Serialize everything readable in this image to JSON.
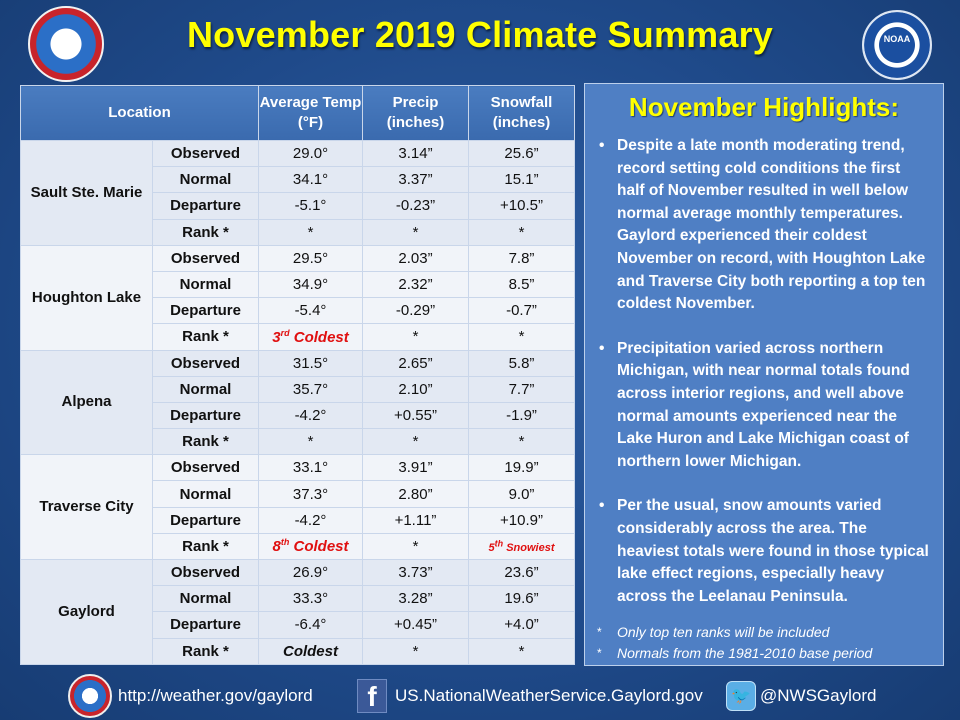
{
  "title": "November 2019 Climate Summary",
  "logos": {
    "left": "nws-icon",
    "right": "noaa-icon",
    "noaa_text": "NOAA"
  },
  "table": {
    "headers": [
      "Location",
      "Average Temp (°F)",
      "Precip (inches)",
      "Snowfall (inches)"
    ],
    "locations": [
      {
        "name": "Sault Ste. Marie",
        "rows": [
          {
            "label": "Observed",
            "temp": "29.0°",
            "precip": "3.14”",
            "snow": "25.6”"
          },
          {
            "label": "Normal",
            "temp": "34.1°",
            "precip": "3.37”",
            "snow": "15.1”"
          },
          {
            "label": "Departure",
            "temp": "-5.1°",
            "precip": "-0.23”",
            "snow": "+10.5”"
          },
          {
            "label": "Rank *",
            "temp": "*",
            "precip": "*",
            "snow": "*"
          }
        ]
      },
      {
        "name": "Houghton Lake",
        "rows": [
          {
            "label": "Observed",
            "temp": "29.5°",
            "precip": "2.03”",
            "snow": "7.8”"
          },
          {
            "label": "Normal",
            "temp": "34.9°",
            "precip": "2.32”",
            "snow": "8.5”"
          },
          {
            "label": "Departure",
            "temp": "-5.4°",
            "precip": "-0.29”",
            "snow": "-0.7”"
          },
          {
            "label": "Rank *",
            "temp_ord": "3",
            "temp_sup": "rd",
            "temp_rest": " Coldest",
            "precip": "*",
            "snow": "*"
          }
        ]
      },
      {
        "name": "Alpena",
        "rows": [
          {
            "label": "Observed",
            "temp": "31.5°",
            "precip": "2.65”",
            "snow": "5.8”"
          },
          {
            "label": "Normal",
            "temp": "35.7°",
            "precip": "2.10”",
            "snow": "7.7”"
          },
          {
            "label": "Departure",
            "temp": "-4.2°",
            "precip": "+0.55”",
            "snow": "-1.9”"
          },
          {
            "label": "Rank *",
            "temp": "*",
            "precip": "*",
            "snow": "*"
          }
        ]
      },
      {
        "name": "Traverse City",
        "rows": [
          {
            "label": "Observed",
            "temp": "33.1°",
            "precip": "3.91”",
            "snow": "19.9”"
          },
          {
            "label": "Normal",
            "temp": "37.3°",
            "precip": "2.80”",
            "snow": "9.0”"
          },
          {
            "label": "Departure",
            "temp": "-4.2°",
            "precip": "+1.11”",
            "snow": "+10.9”"
          },
          {
            "label": "Rank *",
            "temp_ord": "8",
            "temp_sup": "th",
            "temp_rest": " Coldest",
            "precip": "*",
            "snow_ord": "5",
            "snow_sup": "th",
            "snow_rest": " Snowiest"
          }
        ]
      },
      {
        "name": "Gaylord",
        "rows": [
          {
            "label": "Observed",
            "temp": "26.9°",
            "precip": "3.73”",
            "snow": "23.6”"
          },
          {
            "label": "Normal",
            "temp": "33.3°",
            "precip": "3.28”",
            "snow": "19.6”"
          },
          {
            "label": "Departure",
            "temp": "-6.4°",
            "precip": "+0.45”",
            "snow": "+4.0”"
          },
          {
            "label": "Rank *",
            "temp_red": "Coldest",
            "precip": "*",
            "snow": "*"
          }
        ]
      }
    ]
  },
  "highlights": {
    "title": "November Highlights:",
    "bullets": [
      "Despite a late month moderating trend, record setting cold conditions the first half of November resulted in well below normal average monthly temperatures. Gaylord experienced their coldest November on record, with Houghton Lake and Traverse City both reporting a top ten coldest November.",
      "Precipitation varied across northern Michigan, with near normal totals found across interior regions, and well above normal amounts experienced near the Lake Huron and Lake Michigan coast of northern lower Michigan.",
      "Per the usual, snow amounts varied considerably across the area. The heaviest totals were found in those typical lake effect regions, especially heavy across the Leelanau Peninsula."
    ],
    "notes": [
      "Only top ten ranks will be included",
      "Normals from the 1981-2010 base period"
    ]
  },
  "footer": {
    "website": "http://weather.gov/gaylord",
    "facebook": "US.NationalWeatherService.Gaylord.gov",
    "twitter": "@NWSGaylord"
  }
}
